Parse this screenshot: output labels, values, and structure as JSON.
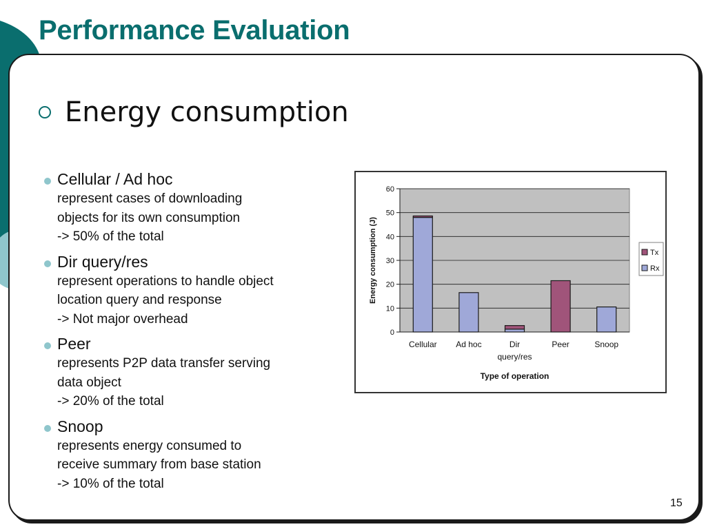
{
  "slide": {
    "title": "Performance Evaluation",
    "heading": "Energy consumption",
    "page_number": "15",
    "colors": {
      "accent": "#0a6e6e",
      "bullet": "#8fc6cc"
    }
  },
  "bullets": [
    {
      "title": "Cellular / Ad hoc",
      "lines": [
        "represent cases of downloading",
        "objects for its own consumption",
        "-> 50% of the total"
      ]
    },
    {
      "title": "Dir query/res",
      "lines": [
        "represent operations to handle object",
        "location query and response",
        "-> Not major overhead"
      ]
    },
    {
      "title": "Peer",
      "lines": [
        "represents P2P data transfer serving",
        "data object",
        "-> 20% of the total"
      ]
    },
    {
      "title": "Snoop",
      "lines": [
        "represents energy consumed to",
        "receive summary from base station",
        "-> 10% of the total"
      ]
    }
  ],
  "chart_data": {
    "type": "bar",
    "stacked": true,
    "categories": [
      "Cellular",
      "Ad hoc",
      "Dir\nquery/res",
      "Peer",
      "Snoop"
    ],
    "series": [
      {
        "name": "Rx",
        "color": "#9fa8d8",
        "values": [
          48,
          16.5,
          1.2,
          0,
          10.5
        ]
      },
      {
        "name": "Tx",
        "color": "#a0547a",
        "values": [
          0.6,
          0,
          1.5,
          21.5,
          0
        ]
      }
    ],
    "xlabel": "Type of operation",
    "ylabel": "Energy consumption (J)",
    "ylim": [
      0,
      60
    ],
    "yticks": [
      0,
      10,
      20,
      30,
      40,
      50,
      60
    ],
    "legend_position": "right",
    "legend_order": [
      "Tx",
      "Rx"
    ],
    "grid": true,
    "plot_background": "#c0c0c0"
  }
}
